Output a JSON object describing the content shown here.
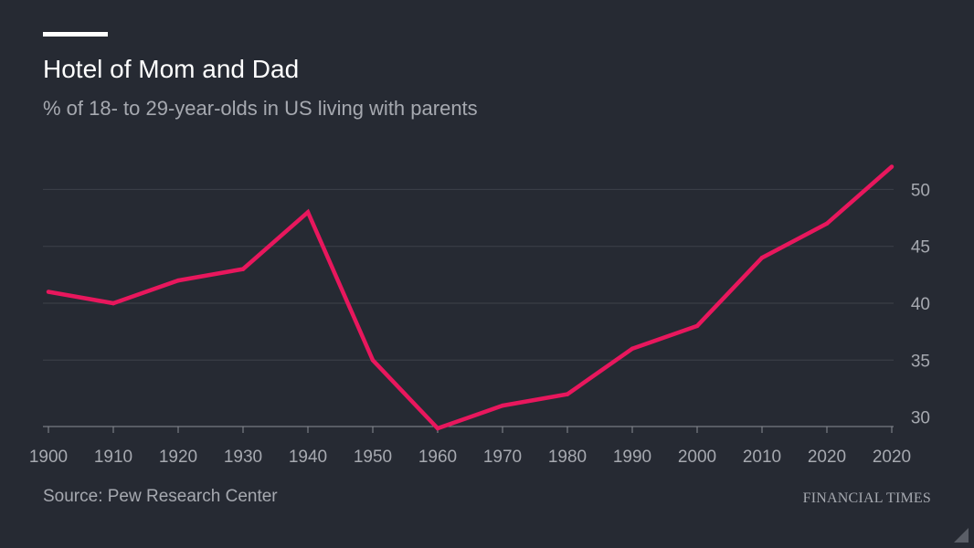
{
  "header": {
    "title": "Hotel of Mom and Dad",
    "subtitle": "% of 18- to 29-year-olds in US living with parents"
  },
  "footer": {
    "source": "Source: Pew Research Center",
    "brand": "FINANCIAL TIMES"
  },
  "colors": {
    "background": "#262a33",
    "line": "#e8175d",
    "grid": "#3d414a",
    "text": "#a6a9b0"
  },
  "chart_data": {
    "type": "line",
    "title": "Hotel of Mom and Dad",
    "subtitle": "% of 18- to 29-year-olds in US living with parents",
    "xlabel": "",
    "ylabel": "",
    "x": [
      1900,
      1910,
      1920,
      1930,
      1940,
      1950,
      1960,
      1970,
      1980,
      1990,
      2000,
      2010,
      2020,
      2020
    ],
    "values": [
      41,
      40,
      42,
      43,
      48,
      35,
      29,
      31,
      32,
      36,
      38,
      44,
      47,
      52
    ],
    "x_ticks": [
      "1900",
      "1910",
      "1920",
      "1930",
      "1940",
      "1950",
      "1960",
      "1970",
      "1980",
      "1990",
      "2000",
      "2010",
      "2020",
      "2020"
    ],
    "y_ticks": [
      30,
      35,
      40,
      45,
      50
    ],
    "ylim": [
      29,
      52
    ],
    "grid": true,
    "y_axis_position": "right",
    "source": "Source: Pew Research Center"
  }
}
